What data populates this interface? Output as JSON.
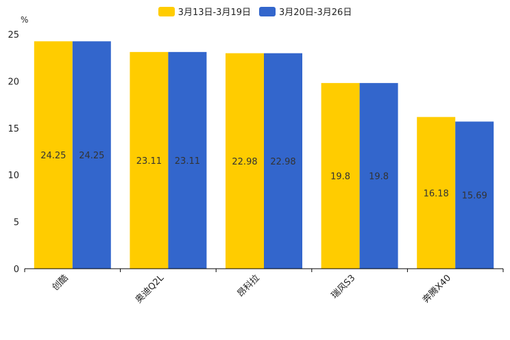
{
  "chart_data": {
    "type": "bar",
    "title": "",
    "xlabel": "",
    "ylabel": "%",
    "ylim": [
      0,
      25
    ],
    "yticks": [
      0,
      5,
      10,
      15,
      20,
      25
    ],
    "grid": false,
    "legend_position": "top-center",
    "categories": [
      "创酷",
      "奥迪Q2L",
      "昂科拉",
      "瑞风S3",
      "奔腾X40"
    ],
    "series": [
      {
        "name": "3月13日-3月19日",
        "color": "#FFCC00",
        "values": [
          24.25,
          23.11,
          22.98,
          19.8,
          16.18
        ],
        "labels": [
          "24.25",
          "23.11",
          "22.98",
          "19.8",
          "16.18"
        ]
      },
      {
        "name": "3月20日-3月26日",
        "color": "#3366CC",
        "values": [
          24.25,
          23.11,
          22.98,
          19.8,
          15.69
        ],
        "labels": [
          "24.25",
          "23.11",
          "22.98",
          "19.8",
          "15.69"
        ]
      }
    ]
  }
}
